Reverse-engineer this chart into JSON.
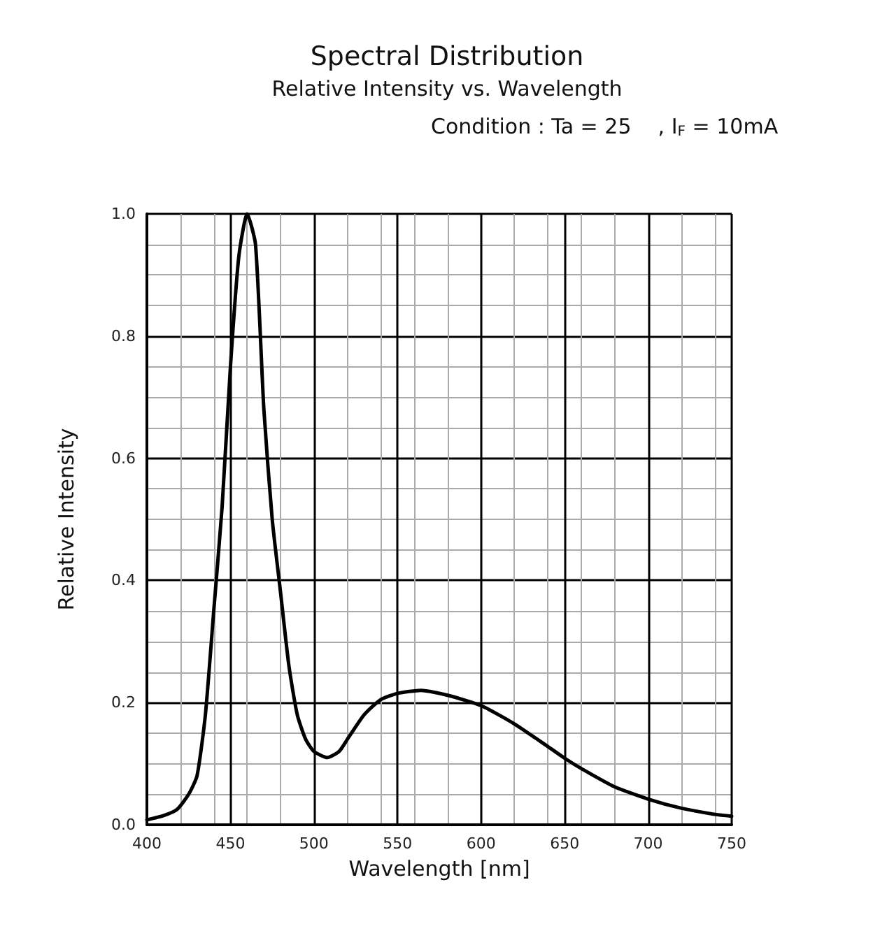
{
  "chart_data": {
    "type": "line",
    "title": "Spectral Distribution",
    "subtitle": "Relative Intensity vs. Wavelength",
    "annotations": [
      "Condition : Ta = 25    , I$_{F}$ = 10mA"
    ],
    "xlabel": "Wavelength [nm]",
    "ylabel": "Relative Intensity",
    "x": [
      400,
      410,
      418,
      425,
      430,
      435,
      440,
      445,
      450,
      455,
      460,
      465,
      470,
      475,
      480,
      485,
      490,
      495,
      500,
      508,
      515,
      520,
      530,
      540,
      550,
      564,
      580,
      600,
      620,
      640,
      650,
      660,
      680,
      700,
      720,
      740,
      750
    ],
    "series": [
      {
        "color": "#000000",
        "values": [
          0.008,
          0.015,
          0.025,
          0.05,
          0.08,
          0.18,
          0.35,
          0.52,
          0.75,
          0.93,
          1.0,
          0.95,
          0.68,
          0.5,
          0.38,
          0.26,
          0.18,
          0.14,
          0.12,
          0.11,
          0.12,
          0.14,
          0.18,
          0.205,
          0.215,
          0.22,
          0.212,
          0.195,
          0.165,
          0.128,
          0.109,
          0.092,
          0.062,
          0.042,
          0.027,
          0.017,
          0.014
        ]
      }
    ],
    "xlim": [
      400,
      750
    ],
    "xticks": [
      400,
      450,
      500,
      550,
      600,
      650,
      700,
      750
    ],
    "ylim": [
      0,
      1
    ],
    "yticks": [
      {
        "value": 0,
        "label": "0.0"
      },
      0.2,
      0.4,
      0.6,
      0.8,
      {
        "value": 1,
        "label": "1.0"
      }
    ],
    "grid": true,
    "marker": "none",
    "line_style": "solid"
  }
}
